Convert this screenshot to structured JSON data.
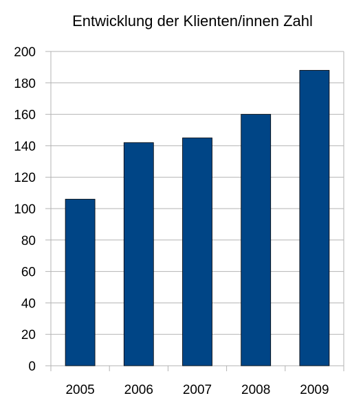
{
  "chart_data": {
    "type": "bar",
    "title": "Entwicklung der Klienten/innen Zahl",
    "xlabel": "",
    "ylabel": "",
    "categories": [
      "2005",
      "2006",
      "2007",
      "2008",
      "2009"
    ],
    "values": [
      106,
      142,
      145,
      160,
      188
    ],
    "ylim": [
      0,
      200
    ],
    "yticks": [
      0,
      20,
      40,
      60,
      80,
      100,
      120,
      140,
      160,
      180,
      200
    ],
    "grid": true,
    "legend": "none",
    "bar_color": "#004586"
  }
}
